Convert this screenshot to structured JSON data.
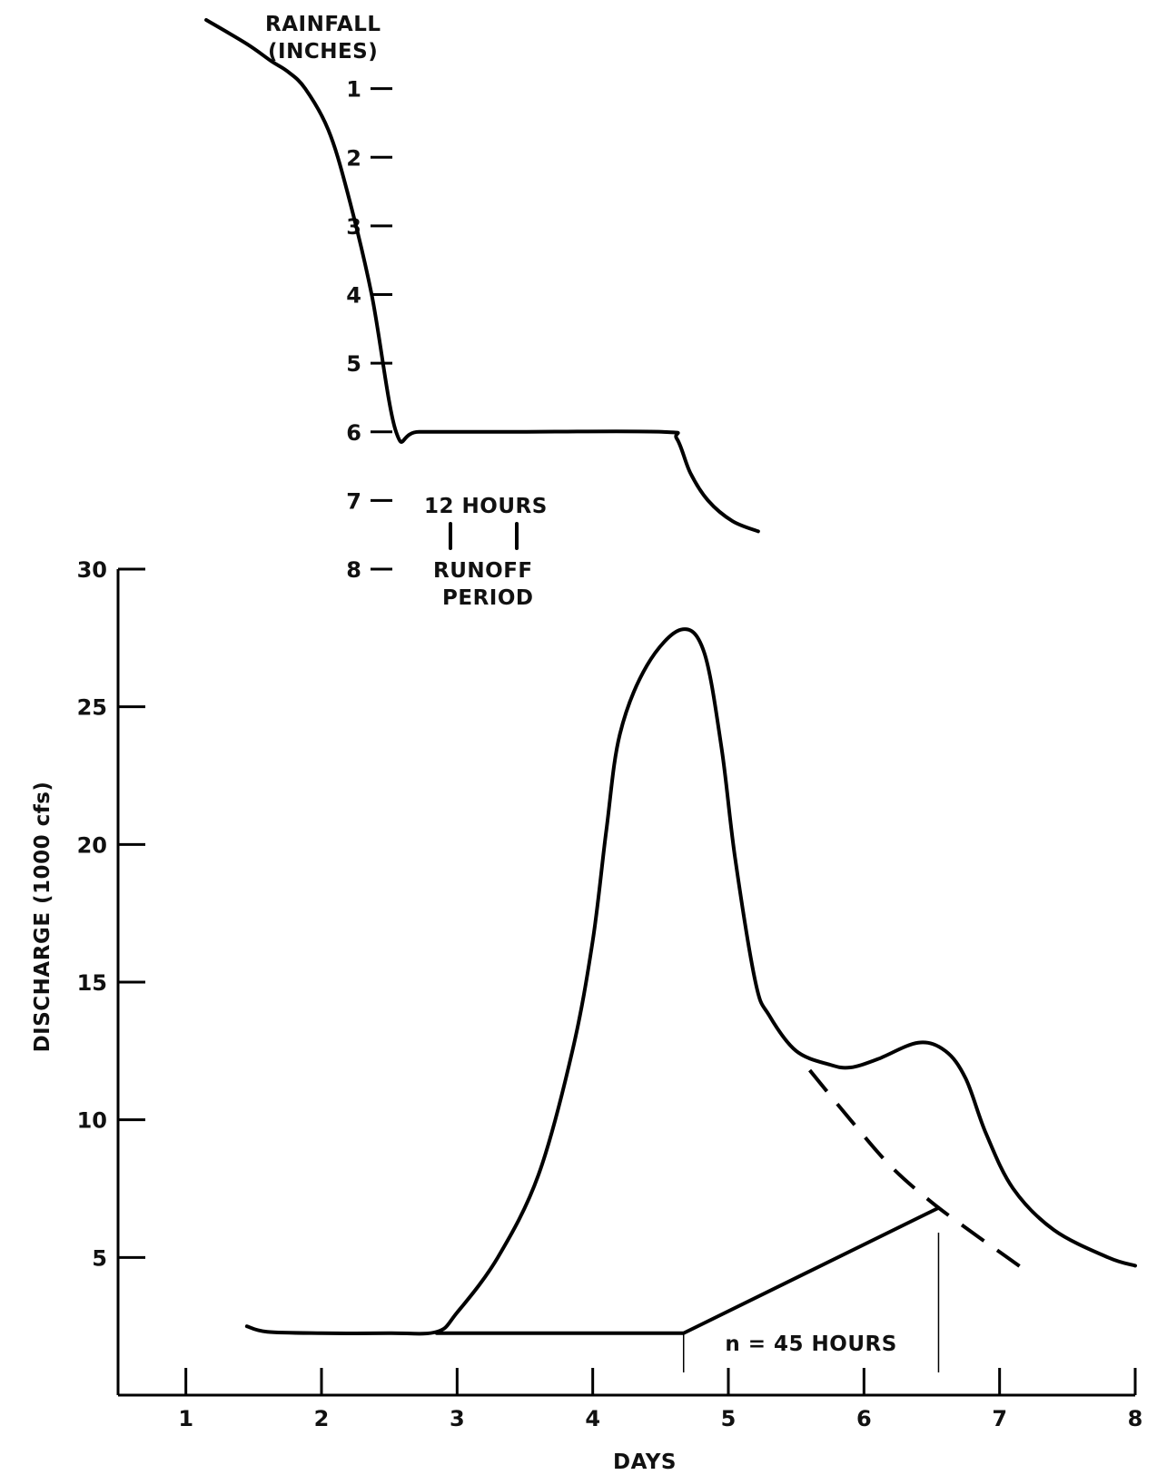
{
  "chart_data": [
    {
      "type": "line",
      "role": "rainfall",
      "ylabel_lines": [
        "RAINFALL",
        "(INCHES)"
      ],
      "yticks": [
        1,
        2,
        3,
        4,
        5,
        6,
        7,
        8
      ],
      "ylim": [
        0,
        8
      ],
      "series": [
        {
          "style": "solid",
          "x": [
            1.15,
            1.45,
            1.63,
            1.75,
            1.88,
            2.05,
            2.19,
            2.37,
            2.55,
            2.72,
            3.38,
            4.51,
            4.62,
            4.72,
            4.85,
            5.03,
            5.22
          ],
          "y": [
            0.0,
            0.35,
            0.6,
            0.75,
            1.0,
            1.6,
            2.5,
            4.0,
            6.0,
            6.0,
            6.0,
            6.0,
            6.1,
            6.6,
            7.0,
            7.3,
            7.45
          ]
        }
      ],
      "annotation": {
        "duration_label": "12 HOURS",
        "period_lines": [
          "RUNOFF",
          "PERIOD"
        ]
      }
    },
    {
      "type": "line",
      "role": "hydrograph",
      "xlabel": "DAYS",
      "ylabel": "DISCHARGE (1000 cfs)",
      "xticks": [
        1,
        2,
        3,
        4,
        5,
        6,
        7,
        8
      ],
      "yticks": [
        5,
        10,
        15,
        20,
        25,
        30
      ],
      "xlim": [
        0.5,
        8.0
      ],
      "ylim": [
        0,
        30
      ],
      "series": [
        {
          "style": "solid",
          "x": [
            1.45,
            1.6,
            2.0,
            2.5,
            2.85,
            3.0,
            3.3,
            3.6,
            3.85,
            4.0,
            4.1,
            4.2,
            4.4,
            4.65,
            4.82,
            4.95,
            5.05,
            5.2,
            5.3,
            5.5,
            5.75,
            5.9,
            6.1,
            6.4,
            6.6,
            6.75,
            6.9,
            7.1,
            7.4,
            7.8,
            8.0
          ],
          "y": [
            2.5,
            2.3,
            2.25,
            2.25,
            2.3,
            3.0,
            5.0,
            8.0,
            12.5,
            16.5,
            20.5,
            24.0,
            26.5,
            27.8,
            27.0,
            23.5,
            19.5,
            15.0,
            13.8,
            12.5,
            12.0,
            11.9,
            12.2,
            12.8,
            12.5,
            11.5,
            9.5,
            7.5,
            6.0,
            5.0,
            4.7
          ]
        },
        {
          "style": "dashed",
          "x": [
            5.6,
            5.9,
            6.2,
            6.5,
            6.8,
            7.0,
            7.2
          ],
          "y": [
            11.8,
            10.0,
            8.3,
            7.0,
            5.9,
            5.2,
            4.5
          ]
        },
        {
          "style": "solid",
          "x": [
            2.85,
            4.67,
            6.55
          ],
          "y": [
            2.25,
            2.25,
            6.8
          ]
        }
      ],
      "annotation": {
        "text": "n = 45 HOURS",
        "from_x": 4.67,
        "to_x": 6.55
      }
    }
  ]
}
